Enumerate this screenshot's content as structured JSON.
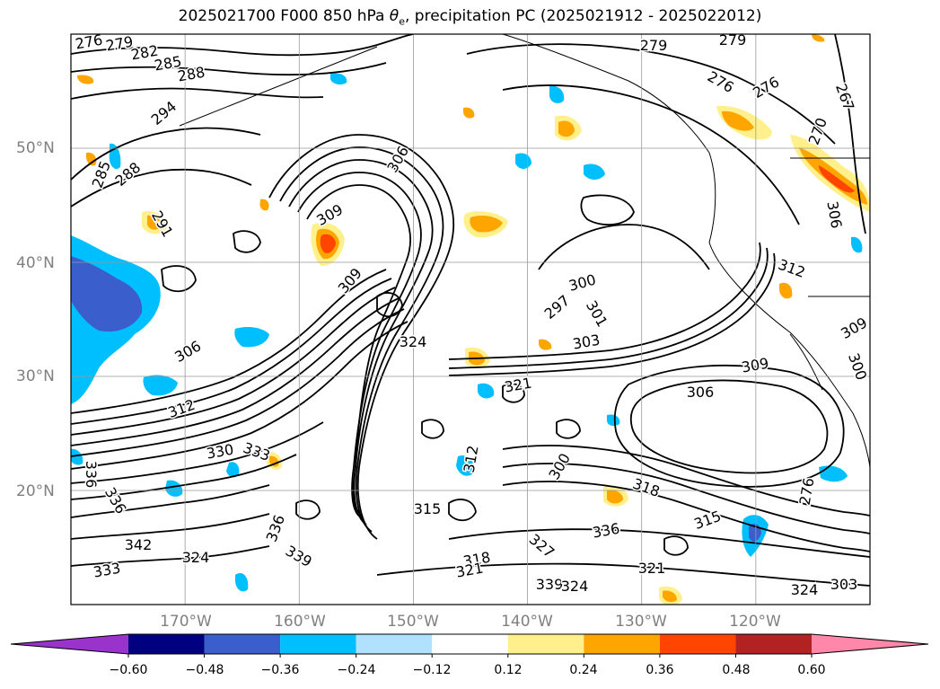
{
  "title": "2025021700 F000 850 hPa θe, precipitation PC (2025021912 - 2025022012)",
  "title_parts": {
    "prefix": "2025021700 F000 850 hPa ",
    "symbol": "θ",
    "subscript": "e",
    "suffix": ", precipitation PC (2025021912 - 2025022012)"
  },
  "map": {
    "projection": "cylindrical",
    "extent": {
      "lon_min": -180,
      "lon_max": -110,
      "lat_min": 10,
      "lat_max": 60
    },
    "lat_labels": [
      "50°N",
      "40°N",
      "30°N",
      "20°N"
    ],
    "lon_labels": [
      "170°W",
      "160°W",
      "150°W",
      "140°W",
      "130°W",
      "120°W"
    ],
    "gridlines": true,
    "contour_labels": [
      "276",
      "279",
      "282",
      "285",
      "288",
      "294",
      "285",
      "288",
      "291",
      "306",
      "309",
      "309",
      "297",
      "300",
      "301",
      "303",
      "324",
      "306",
      "312",
      "321",
      "330",
      "333",
      "336",
      "336",
      "336",
      "339",
      "342",
      "333",
      "324",
      "315",
      "318",
      "321",
      "336",
      "339",
      "324",
      "321",
      "315",
      "318",
      "327",
      "324",
      "303",
      "306",
      "309",
      "312",
      "276",
      "279",
      "279",
      "276",
      "276",
      "270",
      "267",
      "309",
      "300",
      "306",
      "300",
      "312"
    ]
  },
  "colorbar": {
    "ticks": [
      "−0.60",
      "−0.48",
      "−0.36",
      "−0.24",
      "−0.12",
      "0.12",
      "0.24",
      "0.36",
      "0.48",
      "0.60"
    ],
    "colors": [
      "#9933cc",
      "#000080",
      "#3a5fcd",
      "#00bfff",
      "#b0e2ff",
      "#ffffff",
      "#fff08c",
      "#ffa500",
      "#ff4500",
      "#b22222",
      "#ff88aa"
    ]
  },
  "precip_colors": {
    "neg_light": "#b0e2ff",
    "neg_mid": "#00bfff",
    "neg_strong": "#3a5fcd",
    "pos_light": "#fff08c",
    "pos_mid": "#ffa500",
    "pos_strong": "#ff4500"
  }
}
